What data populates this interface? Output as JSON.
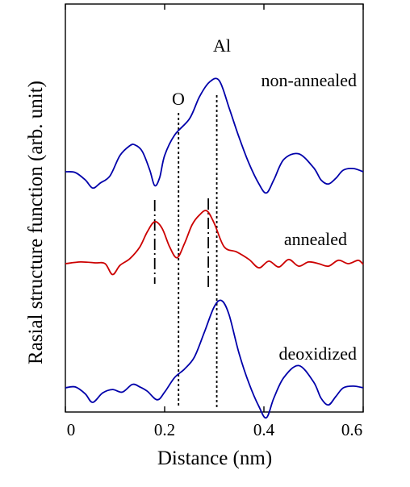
{
  "chart_data": {
    "type": "line",
    "title": "",
    "xlabel": "Distance (nm)",
    "ylabel": "Rasial structure function (arb. unit)",
    "xlim": [
      0,
      0.6
    ],
    "xticks": [
      0,
      0.2,
      0.4,
      0.6
    ],
    "xtick_labels": [
      "0",
      "0.2",
      "0.4",
      "0.6"
    ],
    "yticks_shown": false,
    "grid": false,
    "legend": "none",
    "series_order_top_to_bottom": [
      "non-annealed",
      "annealed",
      "deoxidized"
    ],
    "series": [
      {
        "name": "non-annealed",
        "color": "#0000aa",
        "baseline": 0,
        "x": [
          0,
          0.02,
          0.04,
          0.055,
          0.07,
          0.09,
          0.11,
          0.13,
          0.14,
          0.155,
          0.17,
          0.18,
          0.19,
          0.2,
          0.22,
          0.25,
          0.27,
          0.29,
          0.31,
          0.33,
          0.35,
          0.37,
          0.39,
          0.405,
          0.42,
          0.44,
          0.47,
          0.5,
          0.515,
          0.53,
          0.545,
          0.56,
          0.58,
          0.6
        ],
        "values": [
          0,
          -0.01,
          -0.1,
          -0.2,
          -0.14,
          -0.05,
          0.2,
          0.32,
          0.33,
          0.25,
          0.02,
          -0.17,
          -0.07,
          0.2,
          0.45,
          0.65,
          0.92,
          1.1,
          1.12,
          0.78,
          0.42,
          0.1,
          -0.15,
          -0.26,
          -0.1,
          0.15,
          0.22,
          0.05,
          -0.1,
          -0.15,
          -0.08,
          0.02,
          0.04,
          0.0
        ]
      },
      {
        "name": "annealed",
        "color": "#cc0000",
        "baseline": 0,
        "x": [
          0,
          0.03,
          0.06,
          0.08,
          0.095,
          0.11,
          0.13,
          0.15,
          0.165,
          0.18,
          0.195,
          0.21,
          0.225,
          0.24,
          0.255,
          0.27,
          0.285,
          0.3,
          0.32,
          0.345,
          0.37,
          0.39,
          0.41,
          0.43,
          0.45,
          0.47,
          0.49,
          0.51,
          0.53,
          0.55,
          0.57,
          0.59,
          0.6
        ],
        "values": [
          0,
          0.02,
          0.01,
          0.0,
          -0.13,
          -0.02,
          0.06,
          0.2,
          0.38,
          0.5,
          0.42,
          0.2,
          0.07,
          0.24,
          0.46,
          0.58,
          0.63,
          0.48,
          0.2,
          0.14,
          0.05,
          -0.05,
          0.03,
          -0.04,
          0.05,
          -0.03,
          0.02,
          0.0,
          -0.03,
          0.04,
          0.0,
          0.04,
          -0.01
        ]
      },
      {
        "name": "deoxidized",
        "color": "#0000aa",
        "baseline": 0,
        "x": [
          0,
          0.02,
          0.04,
          0.055,
          0.075,
          0.095,
          0.115,
          0.135,
          0.15,
          0.165,
          0.185,
          0.2,
          0.22,
          0.24,
          0.26,
          0.28,
          0.3,
          0.315,
          0.33,
          0.35,
          0.37,
          0.39,
          0.405,
          0.42,
          0.44,
          0.47,
          0.5,
          0.515,
          0.53,
          0.545,
          0.56,
          0.58,
          0.6
        ],
        "values": [
          0.0,
          0.01,
          -0.07,
          -0.17,
          -0.06,
          -0.02,
          -0.05,
          0.04,
          0.01,
          -0.04,
          -0.14,
          -0.05,
          0.12,
          0.22,
          0.36,
          0.65,
          0.95,
          1.02,
          0.85,
          0.4,
          0.05,
          -0.22,
          -0.35,
          -0.12,
          0.12,
          0.26,
          0.07,
          -0.12,
          -0.2,
          -0.1,
          0.0,
          0.02,
          0.0
        ]
      }
    ],
    "annotations": [
      {
        "type": "text",
        "text": "Al",
        "x": 0.31
      },
      {
        "type": "text",
        "text": "O",
        "x": 0.228
      },
      {
        "type": "vline",
        "style": "dotted",
        "x": 0.228
      },
      {
        "type": "vline",
        "style": "dotted",
        "x": 0.305
      },
      {
        "type": "vline",
        "style": "dashdot",
        "x": 0.18
      },
      {
        "type": "vline",
        "style": "dashdot",
        "x": 0.288
      }
    ]
  }
}
